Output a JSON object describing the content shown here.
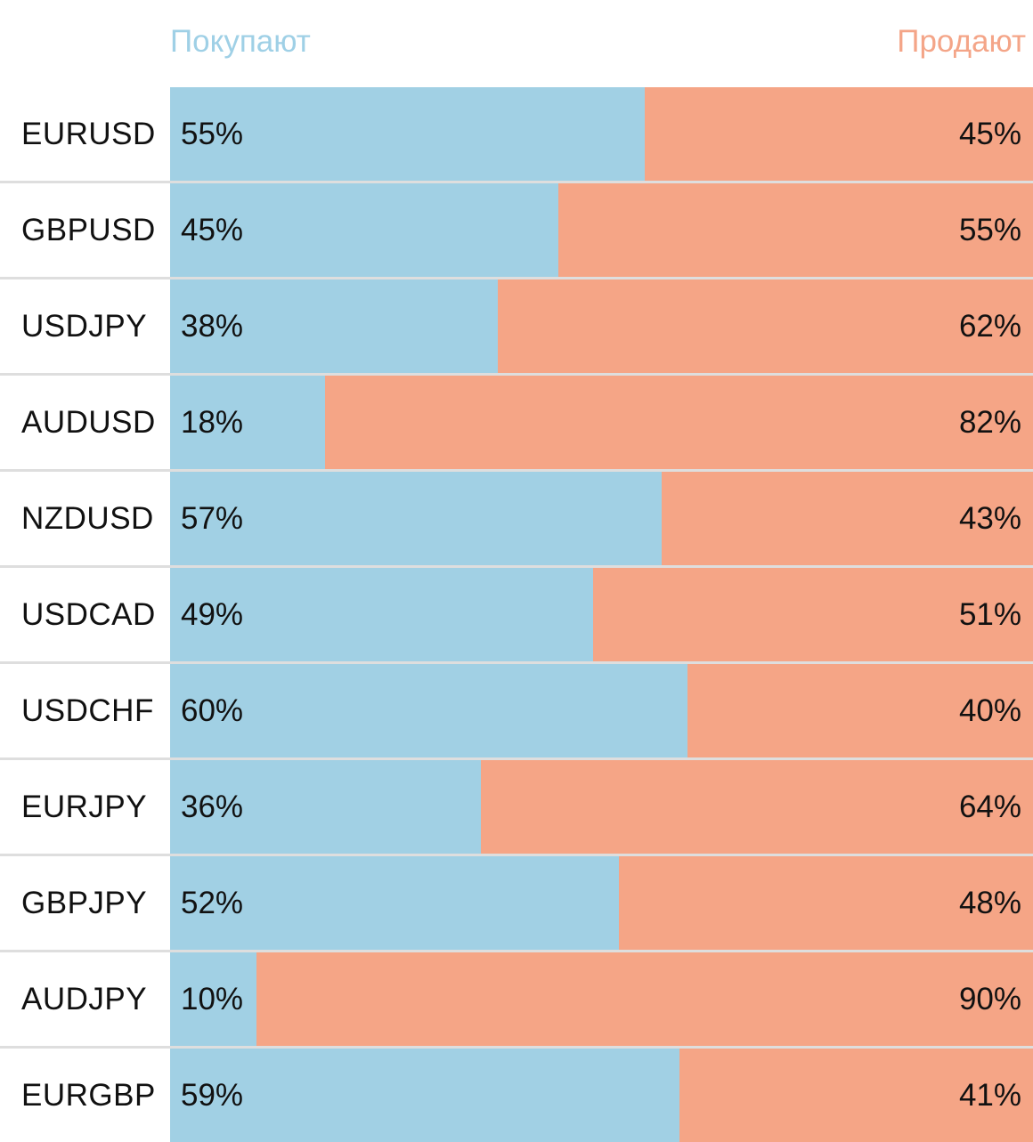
{
  "colors": {
    "buy": "#a1d0e4",
    "sell": "#f5a586",
    "buy_text": "#9fd0e6",
    "sell_text": "#f4a588",
    "text": "#111111",
    "divider": "#dedede"
  },
  "chart_data": {
    "type": "bar",
    "orientation": "horizontal",
    "stacked": true,
    "legend": [
      "Покупают",
      "Продают"
    ],
    "categories": [
      "EURUSD",
      "GBPUSD",
      "USDJPY",
      "AUDUSD",
      "NZDUSD",
      "USDCAD",
      "USDCHF",
      "EURJPY",
      "GBPJPY",
      "AUDJPY",
      "EURGBP"
    ],
    "series": [
      {
        "name": "Покупают",
        "values": [
          55,
          45,
          38,
          18,
          57,
          49,
          60,
          36,
          52,
          10,
          59
        ]
      },
      {
        "name": "Продают",
        "values": [
          45,
          55,
          62,
          82,
          43,
          51,
          40,
          64,
          48,
          90,
          41
        ]
      }
    ],
    "unit": "%",
    "xlim": [
      0,
      100
    ]
  }
}
